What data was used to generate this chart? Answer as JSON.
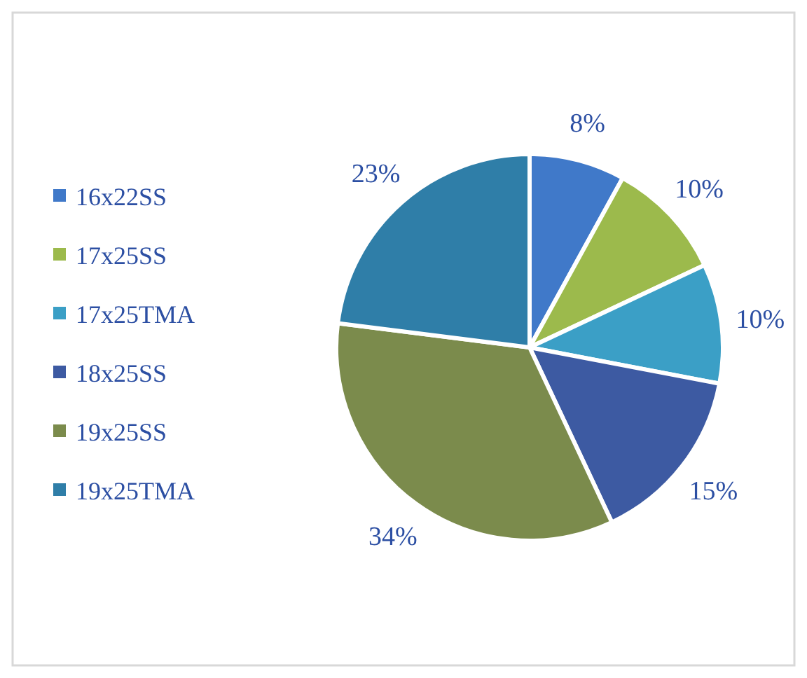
{
  "chart_data": {
    "type": "pie",
    "categories": [
      "16x22SS",
      "17x25SS",
      "17x25TMA",
      "18x25SS",
      "19x25SS",
      "19x25TMA"
    ],
    "values": [
      8,
      10,
      10,
      15,
      34,
      23
    ],
    "colors": [
      "#4079c9",
      "#9cba4c",
      "#3b9fc6",
      "#3d5aa2",
      "#7b8b4c",
      "#2f7ea8"
    ],
    "value_labels": [
      "8%",
      "10%",
      "10%",
      "15%",
      "34%",
      "23%"
    ],
    "legend": "left"
  }
}
